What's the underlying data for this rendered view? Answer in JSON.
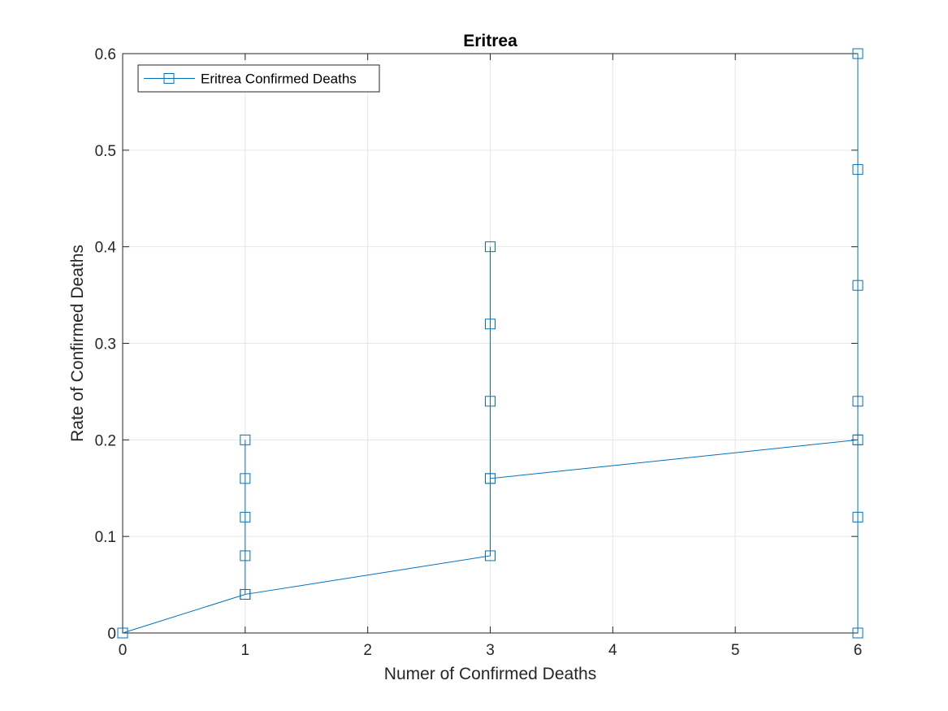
{
  "chart_data": {
    "type": "line",
    "title": "Eritrea",
    "xlabel": "Numer of Confirmed Deaths",
    "ylabel": "Rate of Confirmed Deaths",
    "xlim": [
      0,
      6
    ],
    "ylim": [
      0,
      0.6
    ],
    "xticks": [
      0,
      1,
      2,
      3,
      4,
      5,
      6
    ],
    "xtick_labels": [
      "0",
      "1",
      "2",
      "3",
      "4",
      "5",
      "6"
    ],
    "yticks": [
      0,
      0.1,
      0.2,
      0.3,
      0.4,
      0.5,
      0.6
    ],
    "ytick_labels": [
      "0",
      "0.1",
      "0.2",
      "0.3",
      "0.4",
      "0.5",
      "0.6"
    ],
    "grid": true,
    "legend_location": "top-left",
    "series": [
      {
        "name": "Eritrea Confirmed Deaths",
        "color": "#0072BD",
        "marker": "square",
        "x": [
          0,
          1,
          1,
          1,
          1,
          1,
          1,
          3,
          3,
          3,
          3,
          3,
          3,
          6,
          6,
          6,
          6,
          6,
          6,
          6,
          6
        ],
        "y": [
          0,
          0.04,
          0.08,
          0.12,
          0.16,
          0.2,
          0.04,
          0.08,
          0.16,
          0.24,
          0.32,
          0.4,
          0.16,
          0.2,
          0.24,
          0.36,
          0.48,
          0.6,
          0.12,
          0,
          0.2
        ]
      }
    ]
  }
}
